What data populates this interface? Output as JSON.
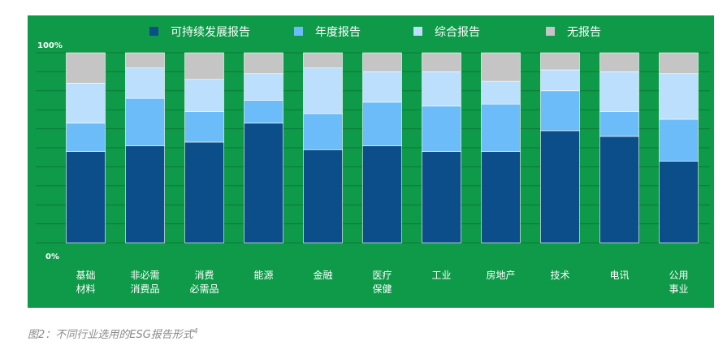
{
  "chart_data": {
    "type": "bar",
    "stacked": true,
    "normalized": true,
    "categories": [
      [
        "基础",
        "材料"
      ],
      [
        "非必需",
        "消费品"
      ],
      [
        "消费",
        "必需品"
      ],
      [
        "能源"
      ],
      [
        "金融"
      ],
      [
        "医疗",
        "保健"
      ],
      [
        "工业"
      ],
      [
        "房地产"
      ],
      [
        "技术"
      ],
      [
        "电讯"
      ],
      [
        "公用",
        "事业"
      ]
    ],
    "series": [
      {
        "name": "可持续发展报告",
        "color": "#0b4e8a",
        "values": [
          48,
          51,
          53,
          63,
          49,
          51,
          48,
          48,
          59,
          56,
          43
        ]
      },
      {
        "name": "年度报告",
        "color": "#6bbcf9",
        "values": [
          15,
          25,
          16,
          12,
          19,
          23,
          24,
          25,
          21,
          13,
          22
        ]
      },
      {
        "name": "综合报告",
        "color": "#bcdffd",
        "values": [
          21,
          16,
          17,
          14,
          24,
          16,
          18,
          12,
          11,
          21,
          24
        ]
      },
      {
        "name": "无报告",
        "color": "#c5c5c5",
        "values": [
          16,
          8,
          14,
          11,
          8,
          10,
          10,
          15,
          9,
          10,
          11
        ]
      }
    ],
    "ylim": [
      0,
      100
    ],
    "ytick_labels": [
      "100%",
      "0%"
    ],
    "legend_position": "top",
    "grid": true,
    "background": "#0e9a48"
  },
  "caption": {
    "text": "图2：不同行业选用的ESG报告形式",
    "superscript": "4"
  }
}
